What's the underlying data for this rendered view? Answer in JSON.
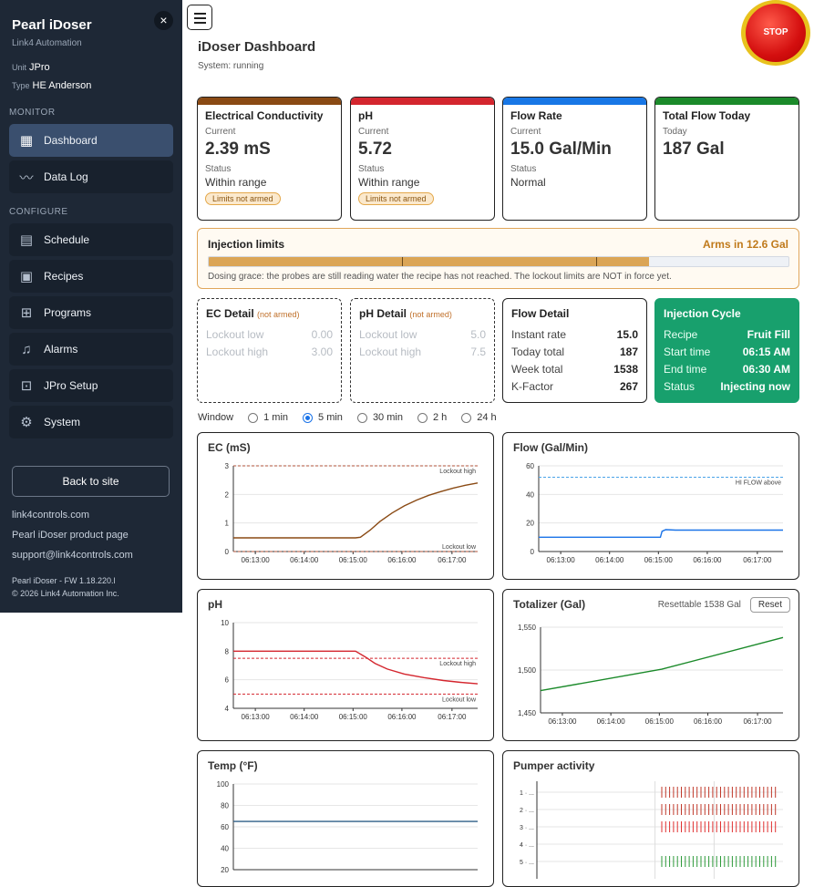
{
  "sidebar": {
    "title": "Pearl iDoser",
    "close": "×",
    "company": "Link4 Automation",
    "unit_label": "Unit",
    "unit_value": "JPro",
    "type_label": "Type",
    "type_value": "HE Anderson",
    "monitor_section": "MONITOR",
    "configure_section": "CONFIGURE",
    "nav": [
      {
        "label": "Dashboard",
        "icon": "dashboard-icon"
      },
      {
        "label": "Data Log",
        "icon": "chart-line-icon"
      },
      {
        "label": "Schedule",
        "icon": "calendar-icon"
      },
      {
        "label": "Recipes",
        "icon": "recipe-icon"
      },
      {
        "label": "Programs",
        "icon": "valve-icon"
      },
      {
        "label": "Alarms",
        "icon": "bell-icon"
      },
      {
        "label": "JPro Setup",
        "icon": "chip-icon"
      },
      {
        "label": "System",
        "icon": "gears-icon"
      }
    ],
    "back": "Back to site",
    "links": [
      "link4controls.com",
      "Pearl iDoser product page",
      "support@link4controls.com"
    ],
    "fw": "Pearl iDoser - FW 1.18.220.l",
    "copyright": "© 2026 Link4 Automation Inc."
  },
  "header": {
    "title": "iDoser Dashboard",
    "status": "System: running",
    "stop": "STOP"
  },
  "cards": [
    {
      "title": "Electrical Conductivity",
      "label": "Current",
      "value": "2.39 mS",
      "status_label": "Status",
      "status": "Within range",
      "badge": "Limits not armed",
      "color": "#8a4a14"
    },
    {
      "title": "pH",
      "label": "Current",
      "value": "5.72",
      "status_label": "Status",
      "status": "Within range",
      "badge": "Limits not armed",
      "color": "#d4262e"
    },
    {
      "title": "Flow Rate",
      "label": "Current",
      "value": "15.0 Gal/Min",
      "status_label": "Status",
      "status": "Normal",
      "color": "#1877e6"
    },
    {
      "title": "Total Flow Today",
      "label": "Today",
      "value": "187 Gal",
      "color": "#1b8a2a"
    }
  ],
  "limits": {
    "title": "Injection limits",
    "arms": "Arms in 12.6 Gal",
    "progress": 0.76,
    "note": "Dosing grace: the probes are still reading water the recipe has not reached. The lockout limits are NOT in force yet."
  },
  "ec_detail": {
    "title": "EC Detail",
    "tag": "(not armed)",
    "rows": [
      {
        "k": "Lockout low",
        "v": "0.00"
      },
      {
        "k": "Lockout high",
        "v": "3.00"
      }
    ]
  },
  "ph_detail": {
    "title": "pH Detail",
    "tag": "(not armed)",
    "rows": [
      {
        "k": "Lockout low",
        "v": "5.0"
      },
      {
        "k": "Lockout high",
        "v": "7.5"
      }
    ]
  },
  "flow_detail": {
    "title": "Flow Detail",
    "rows": [
      {
        "k": "Instant rate",
        "v": "15.0"
      },
      {
        "k": "Today total",
        "v": "187"
      },
      {
        "k": "Week total",
        "v": "1538"
      },
      {
        "k": "K-Factor",
        "v": "267"
      }
    ]
  },
  "injection": {
    "title": "Injection Cycle",
    "rows": [
      {
        "k": "Recipe",
        "v": "Fruit Fill"
      },
      {
        "k": "Start time",
        "v": "06:15 AM"
      },
      {
        "k": "End time",
        "v": "06:30 AM"
      },
      {
        "k": "Status",
        "v": "Injecting now"
      }
    ]
  },
  "window": {
    "label": "Window",
    "options": [
      "1 min",
      "5 min",
      "30 min",
      "2 h",
      "24 h"
    ],
    "selected": "5 min"
  },
  "totalizer": {
    "resettable": "Resettable 1538 Gal",
    "reset": "Reset"
  },
  "chart_data": [
    {
      "id": "ec",
      "type": "line",
      "title": "EC (mS)",
      "ylim": [
        0,
        3
      ],
      "yticks": [
        "0",
        "1",
        "2",
        "3"
      ],
      "x": [
        "06:13:00",
        "06:14:00",
        "06:15:00",
        "06:16:00",
        "06:17:00"
      ],
      "series": [
        {
          "color": "#8a4a14",
          "points": [
            [
              0,
              0.48
            ],
            [
              0.5,
              0.48
            ],
            [
              0.52,
              0.5
            ],
            [
              0.56,
              0.75
            ],
            [
              0.6,
              1.05
            ],
            [
              0.65,
              1.35
            ],
            [
              0.7,
              1.6
            ],
            [
              0.75,
              1.8
            ],
            [
              0.8,
              1.97
            ],
            [
              0.85,
              2.1
            ],
            [
              0.9,
              2.22
            ],
            [
              0.95,
              2.32
            ],
            [
              1,
              2.4
            ]
          ]
        }
      ],
      "refs": [
        {
          "value": 3,
          "label": "Lockout high",
          "color": "#b1533a"
        },
        {
          "value": 0,
          "label": "Lockout low",
          "color": "#b1533a"
        }
      ]
    },
    {
      "id": "flow",
      "type": "line",
      "title": "Flow (Gal/Min)",
      "ylim": [
        0,
        60
      ],
      "yticks": [
        "0",
        "20",
        "40",
        "60"
      ],
      "x": [
        "06:13:00",
        "06:14:00",
        "06:15:00",
        "06:16:00",
        "06:17:00"
      ],
      "series": [
        {
          "color": "#1a73e8",
          "points": [
            [
              0,
              10
            ],
            [
              0.498,
              10
            ],
            [
              0.505,
              14.2
            ],
            [
              0.52,
              15.3
            ],
            [
              0.56,
              15
            ],
            [
              1,
              15
            ]
          ]
        }
      ],
      "refs": [
        {
          "value": 52,
          "label": "HI FLOW above",
          "color": "#4aa3e8"
        }
      ]
    },
    {
      "id": "ph",
      "type": "line",
      "title": "pH",
      "ylim": [
        4,
        10
      ],
      "yticks": [
        "4",
        "6",
        "8",
        "10"
      ],
      "x": [
        "06:13:00",
        "06:14:00",
        "06:15:00",
        "06:16:00",
        "06:17:00"
      ],
      "series": [
        {
          "color": "#d4262e",
          "points": [
            [
              0,
              8
            ],
            [
              0.5,
              8
            ],
            [
              0.54,
              7.6
            ],
            [
              0.58,
              7.15
            ],
            [
              0.63,
              6.75
            ],
            [
              0.7,
              6.4
            ],
            [
              0.78,
              6.15
            ],
            [
              0.86,
              5.95
            ],
            [
              0.93,
              5.82
            ],
            [
              1,
              5.72
            ]
          ]
        }
      ],
      "refs": [
        {
          "value": 7.5,
          "label": "Lockout high",
          "color": "#d4262e"
        },
        {
          "value": 5,
          "label": "Lockout low",
          "color": "#d4262e"
        }
      ]
    },
    {
      "id": "total",
      "type": "line",
      "title": "Totalizer (Gal)",
      "ylim": [
        1450,
        1550
      ],
      "yticks": [
        "1,450",
        "1,500",
        "1,550"
      ],
      "x": [
        "06:13:00",
        "06:14:00",
        "06:15:00",
        "06:16:00",
        "06:17:00"
      ],
      "series": [
        {
          "color": "#1b8a2a",
          "points": [
            [
              0,
              1476
            ],
            [
              0.5,
              1501
            ],
            [
              1,
              1538
            ]
          ]
        }
      ],
      "refs": []
    },
    {
      "id": "temp",
      "type": "line",
      "title": "Temp (°F)",
      "ylim": [
        20,
        100
      ],
      "yticks": [
        "20",
        "40",
        "60",
        "80",
        "100"
      ],
      "x": [],
      "series": [
        {
          "color": "#2f5f86",
          "points": [
            [
              0,
              65
            ],
            [
              0.25,
              65
            ],
            [
              0.5,
              65
            ],
            [
              0.75,
              65
            ],
            [
              1,
              65
            ]
          ]
        }
      ],
      "refs": []
    },
    {
      "id": "pumper",
      "type": "scatter",
      "title": "Pumper activity",
      "rows": [
        "1 · ...",
        "2 · ...",
        "3 · ...",
        "4 · ...",
        "5 · ..."
      ],
      "row_colors": [
        "#c0392b",
        "#c0392b",
        "#e03030",
        "#999999",
        "#2d9a3a"
      ],
      "active_rows": [
        0,
        1,
        2,
        4
      ],
      "active_from": 0.5,
      "active_to": 1.0
    }
  ]
}
